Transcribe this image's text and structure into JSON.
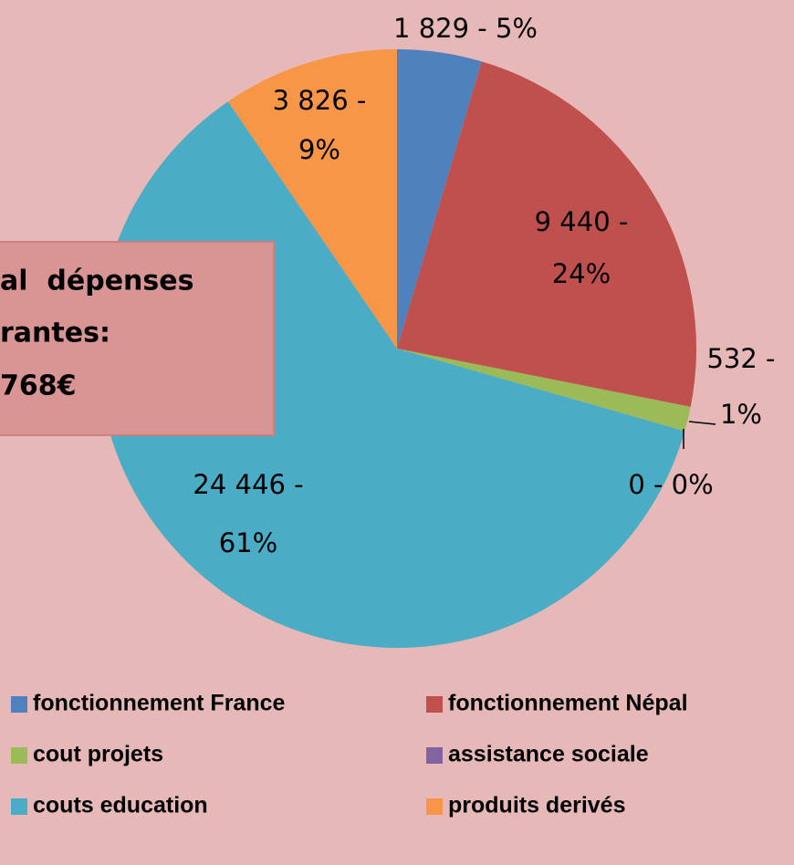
{
  "chart_data": {
    "type": "pie",
    "categories": [
      "fonctionnement France",
      "fonctionnement Népal",
      "cout projets",
      "assistance sociale",
      "couts education",
      "produits derivés"
    ],
    "values": [
      1829,
      9440,
      532,
      0,
      24446,
      3826
    ],
    "value_labels": [
      "1 829 - 5%",
      "9 440 - 24%",
      "532 - 1%",
      "0 - 0%",
      "24 446 - 61%",
      "3 826 - 9%"
    ],
    "colors": [
      "#4f81bd",
      "#c0504d",
      "#9bbb59",
      "#8064a2",
      "#4bacc6",
      "#f79646"
    ],
    "annotation": [
      "al  dépenses",
      "rantes:",
      "768€"
    ],
    "legend": "bottom"
  }
}
